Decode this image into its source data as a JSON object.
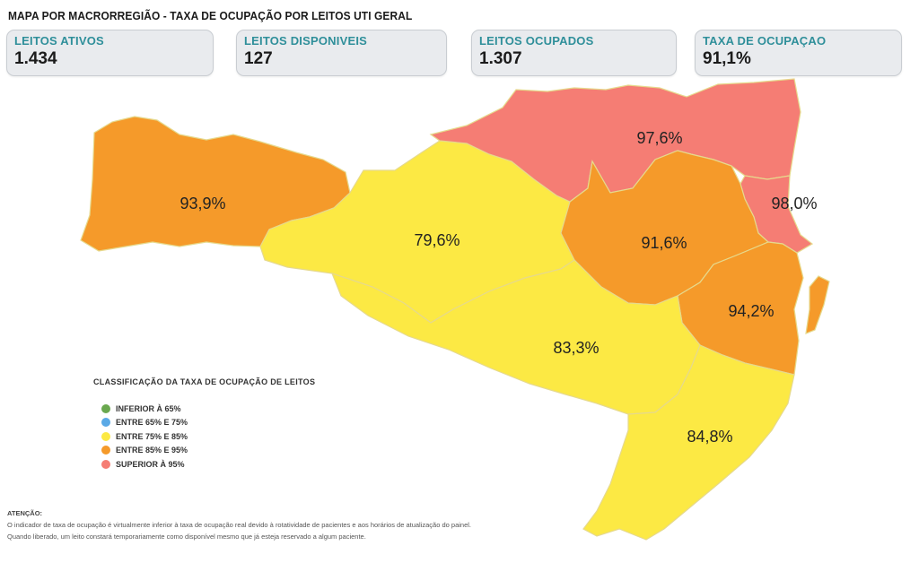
{
  "title": "MAPA POR MACRORREGIÃO - TAXA DE OCUPAÇÃO POR LEITOS UTI GERAL",
  "kpis": [
    {
      "label": "LEITOS ATIVOS",
      "value": "1.434"
    },
    {
      "label": "LEITOS DISPONIVEIS",
      "value": "127"
    },
    {
      "label": "LEITOS OCUPADOS",
      "value": "1.307"
    },
    {
      "label": "TAXA DE OCUPAÇAO",
      "value": "91,1%"
    }
  ],
  "regions": [
    {
      "label": "93,9%",
      "value": 93.9,
      "color": "#f59a2a"
    },
    {
      "label": "79,6%",
      "value": 79.6,
      "color": "#fce944"
    },
    {
      "label": "97,6%",
      "value": 97.6,
      "color": "#f57d74"
    },
    {
      "label": "98,0%",
      "value": 98.0,
      "color": "#f57d74"
    },
    {
      "label": "91,6%",
      "value": 91.6,
      "color": "#f59a2a"
    },
    {
      "label": "94,2%",
      "value": 94.2,
      "color": "#f59a2a"
    },
    {
      "label": "83,3%",
      "value": 83.3,
      "color": "#fce944"
    },
    {
      "label": "84,8%",
      "value": 84.8,
      "color": "#fce944"
    }
  ],
  "legend": {
    "title": "CLASSIFICAÇÃO DA TAXA DE OCUPAÇÃO DE LEITOS",
    "items": [
      {
        "label": "INFERIOR À 65%",
        "color": "#6aa84f"
      },
      {
        "label": "ENTRE 65% E 75%",
        "color": "#5aa9e6"
      },
      {
        "label": "ENTRE 75% E 85%",
        "color": "#fce944"
      },
      {
        "label": "ENTRE 85% E 95%",
        "color": "#f59a2a"
      },
      {
        "label": "SUPERIOR À 95%",
        "color": "#f57d74"
      }
    ]
  },
  "notice": {
    "title": "ATENÇÃO:",
    "lines": [
      "O indicador de taxa de ocupação é virtualmente inferior à taxa de ocupação real devido à rotatividade de pacientes e aos horários de atualização do painel.",
      "Quando liberado, um leito constará temporariamente como disponível mesmo que já esteja reservado a algum paciente."
    ]
  }
}
